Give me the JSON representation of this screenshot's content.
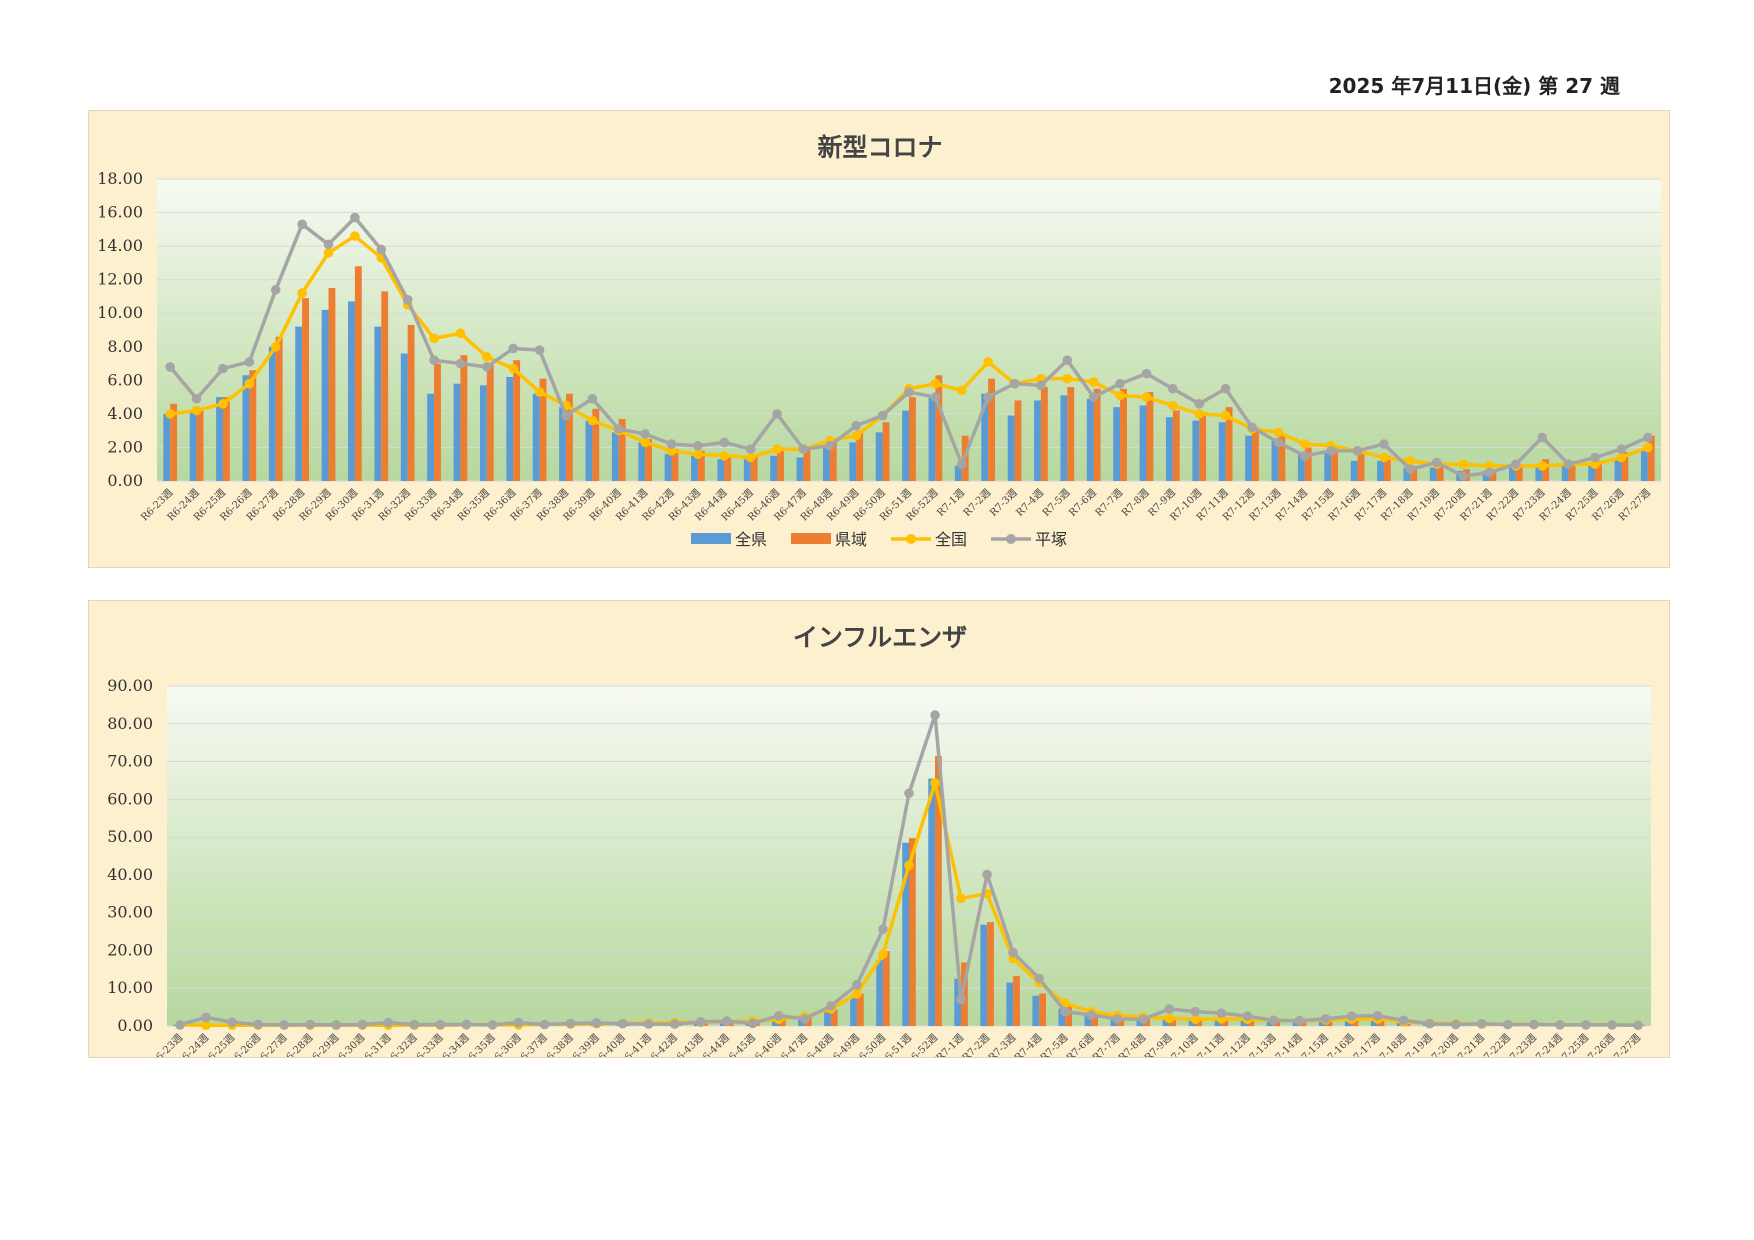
{
  "header": {
    "date_text": "2025 年7月11日(金) 第 27 週"
  },
  "colors": {
    "zenken": "#5b9bd5",
    "kenjo": "#ed7d31",
    "zenkoku": "#ffc000",
    "hiratsuka": "#a5a5a5"
  },
  "legend": [
    "全県",
    "県域",
    "全国",
    "平塚"
  ],
  "chart_data": [
    {
      "type": "bar+line",
      "title": "新型コロナ",
      "ylim": [
        0,
        18
      ],
      "yticks": [
        "0.00",
        "2.00",
        "4.00",
        "6.00",
        "8.00",
        "10.00",
        "12.00",
        "14.00",
        "16.00",
        "18.00"
      ],
      "grid": true,
      "legend_position": "bottom",
      "categories": [
        "R6-23週",
        "R6-24週",
        "R6-25週",
        "R6-26週",
        "R6-27週",
        "R6-28週",
        "R6-29週",
        "R6-30週",
        "R6-31週",
        "R6-32週",
        "R6-33週",
        "R6-34週",
        "R6-35週",
        "R6-36週",
        "R6-37週",
        "R6-38週",
        "R6-39週",
        "R6-40週",
        "R6-41週",
        "R6-42週",
        "R6-43週",
        "R6-44週",
        "R6-45週",
        "R6-46週",
        "R6-47週",
        "R6-48週",
        "R6-49週",
        "R6-50週",
        "R6-51週",
        "R6-52週",
        "R7-1週",
        "R7-2週",
        "R7-3週",
        "R7-4週",
        "R7-5週",
        "R7-6週",
        "R7-7週",
        "R7-8週",
        "R7-9週",
        "R7-10週",
        "R7-11週",
        "R7-12週",
        "R7-13週",
        "R7-14週",
        "R7-15週",
        "R7-16週",
        "R7-17週",
        "R7-18週",
        "R7-19週",
        "R7-20週",
        "R7-21週",
        "R7-22週",
        "R7-23週",
        "R7-24週",
        "R7-25週",
        "R7-26週",
        "R7-27週"
      ],
      "series": [
        {
          "name": "全県",
          "kind": "bar",
          "values": [
            4.0,
            4.1,
            5.0,
            6.3,
            8.0,
            9.2,
            10.2,
            10.7,
            9.2,
            7.6,
            5.2,
            5.8,
            5.7,
            6.2,
            5.2,
            4.4,
            3.6,
            2.9,
            2.3,
            1.6,
            1.5,
            1.3,
            1.3,
            1.5,
            1.4,
            2.0,
            2.3,
            2.9,
            4.2,
            5.1,
            0.9,
            5.2,
            3.9,
            4.8,
            5.1,
            4.9,
            4.4,
            4.5,
            3.8,
            3.6,
            3.5,
            2.7,
            2.4,
            1.6,
            1.8,
            1.2,
            1.2,
            0.8,
            0.8,
            0.6,
            0.6,
            0.8,
            0.9,
            0.9,
            1.0,
            1.4,
            1.8
          ]
        },
        {
          "name": "県域",
          "kind": "bar",
          "values": [
            4.6,
            4.3,
            5.0,
            6.6,
            8.6,
            10.9,
            11.5,
            12.8,
            11.3,
            9.3,
            7.0,
            7.5,
            7.0,
            7.2,
            6.1,
            5.2,
            4.3,
            3.7,
            2.5,
            1.9,
            1.8,
            1.4,
            1.5,
            1.8,
            1.9,
            2.4,
            3.0,
            3.5,
            5.0,
            6.3,
            2.7,
            6.1,
            4.8,
            5.6,
            5.6,
            5.5,
            5.5,
            5.3,
            4.2,
            4.1,
            4.4,
            3.2,
            2.7,
            2.0,
            2.0,
            1.6,
            1.5,
            0.9,
            0.9,
            0.7,
            0.6,
            0.9,
            1.3,
            1.0,
            1.2,
            1.7,
            2.7
          ]
        },
        {
          "name": "全国",
          "kind": "line",
          "values": [
            4.0,
            4.2,
            4.6,
            5.8,
            8.0,
            11.2,
            13.6,
            14.6,
            13.3,
            10.5,
            8.5,
            8.8,
            7.4,
            6.7,
            5.3,
            4.5,
            3.6,
            3.0,
            2.3,
            1.8,
            1.6,
            1.5,
            1.4,
            1.9,
            1.9,
            2.4,
            2.7,
            3.9,
            5.5,
            5.8,
            5.4,
            7.1,
            5.8,
            6.1,
            6.1,
            5.9,
            5.1,
            5.0,
            4.5,
            4.0,
            3.9,
            3.1,
            2.9,
            2.2,
            2.1,
            1.8,
            1.4,
            1.2,
            1.0,
            1.0,
            0.9,
            0.9,
            0.9,
            1.0,
            1.0,
            1.4,
            2.0
          ]
        },
        {
          "name": "平塚",
          "kind": "line",
          "values": [
            6.8,
            4.9,
            6.7,
            7.1,
            11.4,
            15.3,
            14.1,
            15.7,
            13.8,
            10.8,
            7.2,
            7.0,
            6.8,
            7.9,
            7.8,
            3.9,
            4.9,
            3.1,
            2.8,
            2.2,
            2.1,
            2.3,
            1.9,
            4.0,
            1.9,
            2.1,
            3.3,
            3.9,
            5.3,
            5.0,
            1.0,
            5.0,
            5.8,
            5.7,
            7.2,
            5.0,
            5.8,
            6.4,
            5.5,
            4.6,
            5.5,
            3.2,
            2.3,
            1.5,
            1.8,
            1.8,
            2.2,
            0.7,
            1.1,
            0.3,
            0.5,
            1.0,
            2.6,
            1.0,
            1.4,
            1.9,
            2.6
          ]
        }
      ]
    },
    {
      "type": "bar+line",
      "title": "インフルエンザ",
      "ylim": [
        0,
        90
      ],
      "yticks": [
        "0.00",
        "10.00",
        "20.00",
        "30.00",
        "40.00",
        "50.00",
        "60.00",
        "70.00",
        "80.00",
        "90.00"
      ],
      "grid": true,
      "legend_position": "bottom",
      "categories": [
        "R6-23週",
        "R6-24週",
        "R6-25週",
        "R6-26週",
        "R6-27週",
        "R6-28週",
        "R6-29週",
        "R6-30週",
        "R6-31週",
        "R6-32週",
        "R6-33週",
        "R6-34週",
        "R6-35週",
        "R6-36週",
        "R6-37週",
        "R6-38週",
        "R6-39週",
        "R6-40週",
        "R6-41週",
        "R6-42週",
        "R6-43週",
        "R6-44週",
        "R6-45週",
        "R6-46週",
        "R6-47週",
        "R6-48週",
        "R6-49週",
        "R6-50週",
        "R6-51週",
        "R6-52週",
        "R7-1週",
        "R7-2週",
        "R7-3週",
        "R7-4週",
        "R7-5週",
        "R7-6週",
        "R7-7週",
        "R7-8週",
        "R7-9週",
        "R7-10週",
        "R7-11週",
        "R7-12週",
        "R7-13週",
        "R7-14週",
        "R7-15週",
        "R7-16週",
        "R7-17週",
        "R7-18週",
        "R7-19週",
        "R7-20週",
        "R7-21週",
        "R7-22週",
        "R7-23週",
        "R7-24週",
        "R7-25週",
        "R7-26週",
        "R7-27週"
      ],
      "series": [
        {
          "name": "全県",
          "kind": "bar",
          "values": [
            0.3,
            0.3,
            0.3,
            0.3,
            0.3,
            0.3,
            0.3,
            0.3,
            0.4,
            0.4,
            0.4,
            0.4,
            0.4,
            0.5,
            0.5,
            0.6,
            0.6,
            0.7,
            0.8,
            0.8,
            1.0,
            1.1,
            1.2,
            1.5,
            2.0,
            3.8,
            7.5,
            17.5,
            48.5,
            65.5,
            12.5,
            26.8,
            11.5,
            8.0,
            4.6,
            3.2,
            2.2,
            2.0,
            1.7,
            1.6,
            1.6,
            1.4,
            1.1,
            0.9,
            1.1,
            1.2,
            1.3,
            0.9,
            0.6,
            0.5,
            0.5,
            0.4,
            0.4,
            0.4,
            0.4,
            0.3,
            0.3
          ]
        },
        {
          "name": "県域",
          "kind": "bar",
          "values": [
            0.3,
            0.3,
            0.3,
            0.3,
            0.3,
            0.3,
            0.3,
            0.3,
            0.4,
            0.4,
            0.4,
            0.4,
            0.4,
            0.5,
            0.5,
            0.6,
            0.7,
            0.8,
            0.9,
            0.9,
            1.1,
            1.2,
            1.3,
            1.7,
            2.3,
            4.3,
            8.5,
            19.8,
            49.7,
            71.5,
            16.8,
            27.5,
            13.2,
            8.6,
            5.4,
            3.8,
            2.5,
            2.3,
            1.9,
            1.8,
            1.8,
            1.6,
            1.2,
            1.0,
            1.2,
            1.3,
            1.4,
            1.0,
            0.7,
            0.6,
            0.5,
            0.5,
            0.5,
            0.4,
            0.4,
            0.3,
            0.3
          ]
        },
        {
          "name": "全国",
          "kind": "line",
          "values": [
            0.3,
            0.2,
            0.2,
            0.2,
            0.2,
            0.2,
            0.2,
            0.2,
            0.2,
            0.2,
            0.2,
            0.3,
            0.3,
            0.3,
            0.4,
            0.5,
            0.6,
            0.7,
            0.8,
            0.9,
            1.0,
            1.2,
            1.3,
            1.8,
            2.5,
            4.5,
            8.5,
            19.0,
            42.5,
            64.3,
            33.8,
            35.0,
            17.8,
            11.5,
            6.0,
            3.8,
            2.8,
            2.4,
            2.0,
            1.8,
            1.9,
            1.8,
            1.5,
            1.4,
            1.6,
            1.8,
            1.9,
            1.1,
            0.7,
            0.6,
            0.5,
            0.4,
            0.4,
            0.3,
            0.3,
            0.3,
            0.2
          ]
        },
        {
          "name": "平塚",
          "kind": "line",
          "values": [
            0.3,
            2.3,
            1.0,
            0.4,
            0.3,
            0.4,
            0.3,
            0.4,
            0.9,
            0.4,
            0.4,
            0.4,
            0.3,
            0.9,
            0.4,
            0.7,
            0.8,
            0.6,
            0.5,
            0.5,
            1.1,
            1.3,
            0.7,
            2.7,
            1.9,
            5.3,
            10.9,
            25.6,
            61.6,
            82.3,
            7.0,
            40.1,
            19.4,
            12.6,
            3.8,
            2.9,
            1.9,
            1.8,
            4.5,
            3.8,
            3.4,
            2.6,
            1.5,
            1.4,
            1.9,
            2.6,
            2.7,
            1.5,
            0.6,
            0.4,
            0.6,
            0.4,
            0.4,
            0.3,
            0.3,
            0.3,
            0.2
          ]
        }
      ]
    }
  ]
}
